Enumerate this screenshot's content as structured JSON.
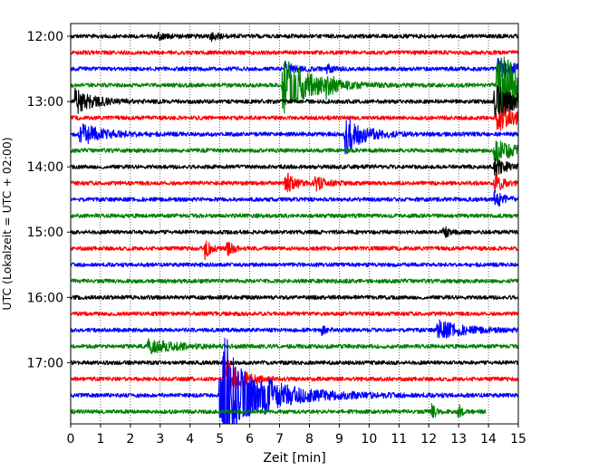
{
  "chart_data": {
    "type": "line",
    "kind": "helicorder-seismogram",
    "xlabel": "Zeit  [min]",
    "ylabel": "UTC (Lokalzeit = UTC + 02:00)",
    "xlim": [
      0,
      15
    ],
    "x_ticks": [
      0,
      1,
      2,
      3,
      4,
      5,
      6,
      7,
      8,
      9,
      10,
      11,
      12,
      13,
      14,
      15
    ],
    "y_tick_labels": [
      "12:00",
      "13:00",
      "14:00",
      "15:00",
      "16:00",
      "17:00"
    ],
    "y_tick_rows": [
      0,
      4,
      8,
      12,
      16,
      20
    ],
    "grid": "vertical dotted at each minute",
    "trace_colors": [
      "#000000",
      "#ff0000",
      "#0000ff",
      "#008000"
    ],
    "rows": 24,
    "minutes_per_row": 15,
    "last_row_end_min": 13.9,
    "base_noise": 0.25,
    "events": [
      {
        "row": 0,
        "t": 2.9,
        "amp": 0.35,
        "dur": 0.4
      },
      {
        "row": 0,
        "t": 4.7,
        "amp": 0.45,
        "dur": 0.25
      },
      {
        "row": 2,
        "t": 7.2,
        "amp": 0.7,
        "dur": 0.35
      },
      {
        "row": 2,
        "t": 8.6,
        "amp": 0.5,
        "dur": 0.2
      },
      {
        "row": 2,
        "t": 14.3,
        "amp": 1.2,
        "dur": 0.6
      },
      {
        "row": 3,
        "t": 7.1,
        "amp": 3.4,
        "dur": 0.9
      },
      {
        "row": 3,
        "t": 8.5,
        "amp": 1.5,
        "dur": 0.2
      },
      {
        "row": 3,
        "t": 14.3,
        "amp": 4.5,
        "dur": 0.9
      },
      {
        "row": 4,
        "t": 0.15,
        "amp": 1.5,
        "dur": 0.6
      },
      {
        "row": 4,
        "t": 14.2,
        "amp": 2.0,
        "dur": 0.8
      },
      {
        "row": 5,
        "t": 14.3,
        "amp": 1.6,
        "dur": 0.7
      },
      {
        "row": 6,
        "t": 0.3,
        "amp": 1.3,
        "dur": 0.8
      },
      {
        "row": 6,
        "t": 9.2,
        "amp": 2.4,
        "dur": 0.6
      },
      {
        "row": 7,
        "t": 14.2,
        "amp": 1.5,
        "dur": 0.6
      },
      {
        "row": 8,
        "t": 14.2,
        "amp": 1.0,
        "dur": 0.4
      },
      {
        "row": 9,
        "t": 7.2,
        "amp": 1.3,
        "dur": 0.35
      },
      {
        "row": 9,
        "t": 8.2,
        "amp": 0.8,
        "dur": 0.35
      },
      {
        "row": 9,
        "t": 14.2,
        "amp": 1.1,
        "dur": 0.3
      },
      {
        "row": 10,
        "t": 14.2,
        "amp": 1.0,
        "dur": 0.3
      },
      {
        "row": 12,
        "t": 12.5,
        "amp": 0.6,
        "dur": 0.2
      },
      {
        "row": 13,
        "t": 4.5,
        "amp": 1.3,
        "dur": 0.15
      },
      {
        "row": 13,
        "t": 5.25,
        "amp": 1.3,
        "dur": 0.15
      },
      {
        "row": 18,
        "t": 8.4,
        "amp": 0.6,
        "dur": 0.15
      },
      {
        "row": 18,
        "t": 12.3,
        "amp": 1.1,
        "dur": 0.8
      },
      {
        "row": 19,
        "t": 2.6,
        "amp": 0.8,
        "dur": 0.9
      },
      {
        "row": 21,
        "t": 5.1,
        "amp": 3.0,
        "dur": 0.5
      },
      {
        "row": 22,
        "t": 5.0,
        "amp": 3.8,
        "dur": 1.6
      },
      {
        "row": 22,
        "t": 5.1,
        "amp": 6.0,
        "dur": 0.3
      },
      {
        "row": 22,
        "t": 6.5,
        "amp": 0.6,
        "dur": 0.5
      },
      {
        "row": 23,
        "t": 12.1,
        "amp": 1.2,
        "dur": 0.12
      },
      {
        "row": 23,
        "t": 13.0,
        "amp": 0.9,
        "dur": 0.12
      }
    ]
  }
}
